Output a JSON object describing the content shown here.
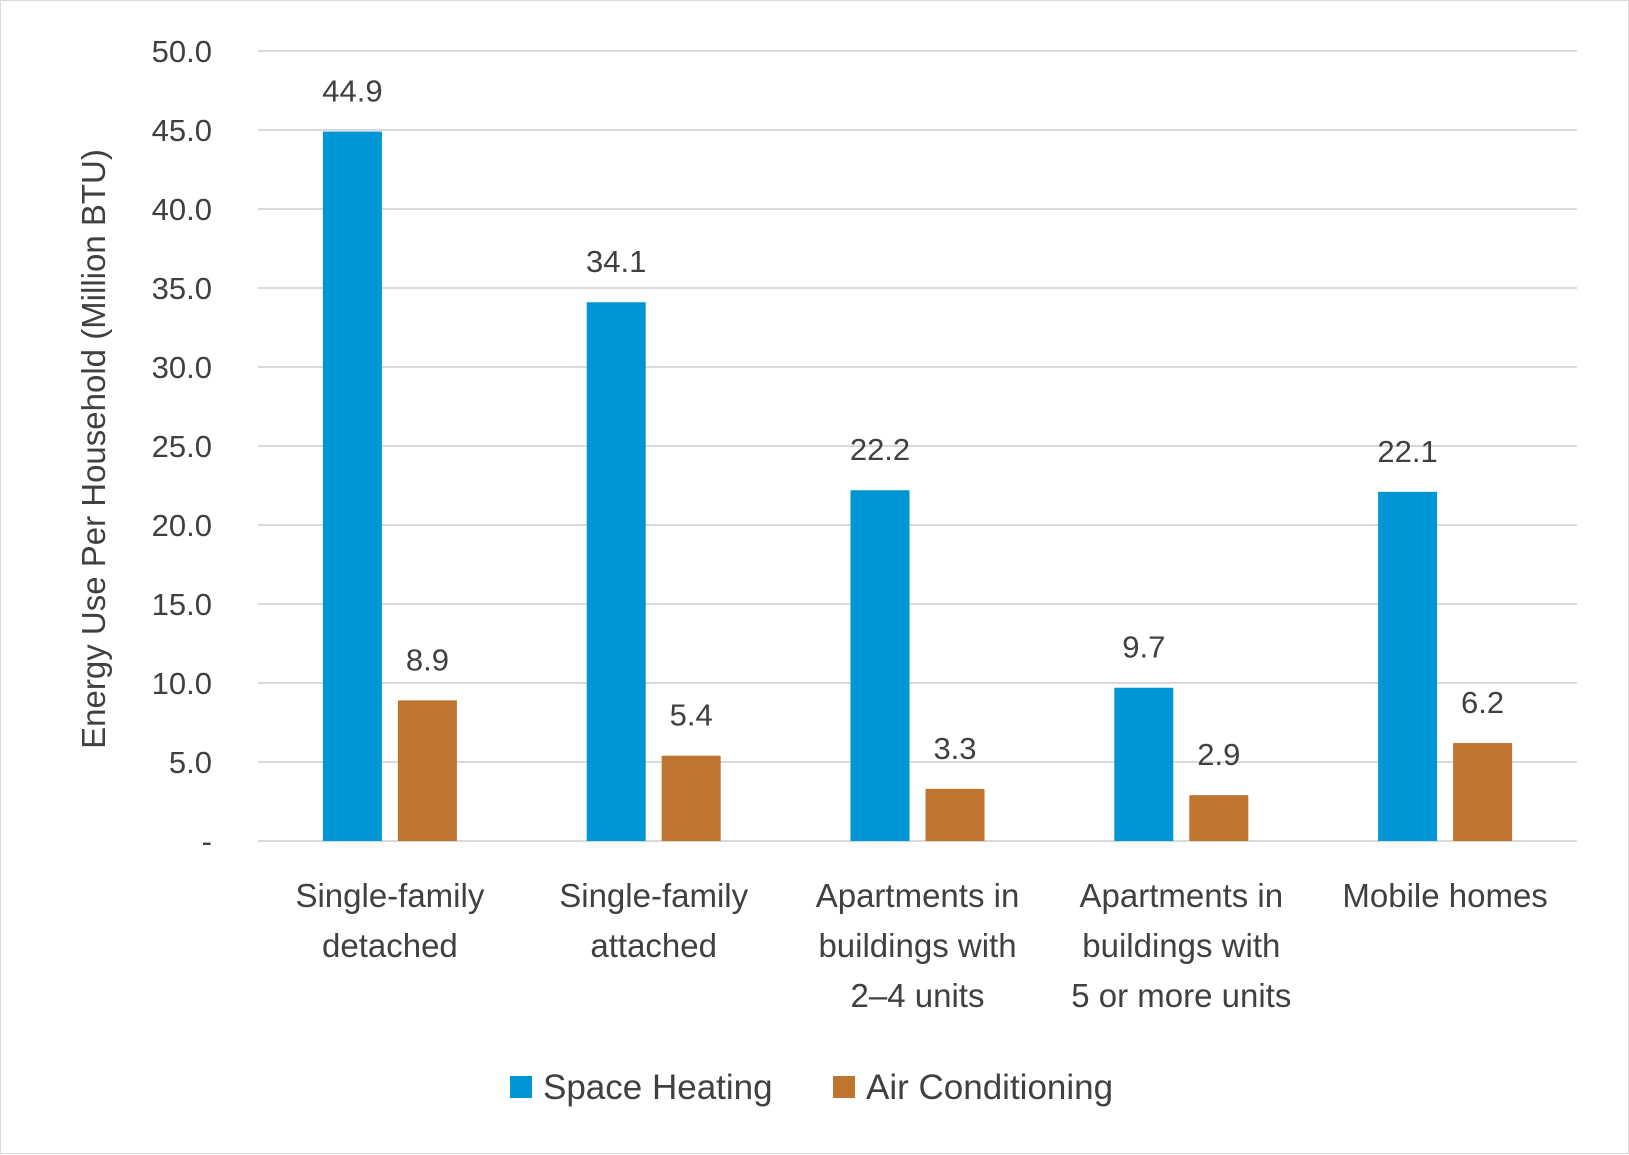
{
  "chart_data": {
    "type": "bar",
    "title": "",
    "xlabel": "",
    "ylabel": "Energy Use Per Household (Million BTU)",
    "ylim": [
      0,
      50
    ],
    "yticks": [
      "-",
      "5.0",
      "10.0",
      "15.0",
      "20.0",
      "25.0",
      "30.0",
      "35.0",
      "40.0",
      "45.0",
      "50.0"
    ],
    "grid": true,
    "legend_position": "bottom",
    "categories": [
      [
        "Single-family",
        "detached"
      ],
      [
        "Single-family",
        "attached"
      ],
      [
        "Apartments in",
        "buildings with",
        "2–4 units"
      ],
      [
        "Apartments in",
        "buildings with",
        "5 or more units"
      ],
      [
        "Mobile homes"
      ]
    ],
    "series": [
      {
        "name": "Space Heating",
        "color": "#0096D6",
        "values": [
          44.9,
          34.1,
          22.2,
          9.7,
          22.1
        ],
        "labels": [
          "44.9",
          "34.1",
          "22.2",
          "9.7",
          "22.1"
        ]
      },
      {
        "name": "Air Conditioning",
        "color": "#BF7430",
        "values": [
          8.9,
          5.4,
          3.3,
          2.9,
          6.2
        ],
        "labels": [
          "8.9",
          "5.4",
          "3.3",
          "2.9",
          "6.2"
        ]
      }
    ],
    "colors": {
      "gridline": "#d9d9d9",
      "text": "#404040"
    }
  }
}
